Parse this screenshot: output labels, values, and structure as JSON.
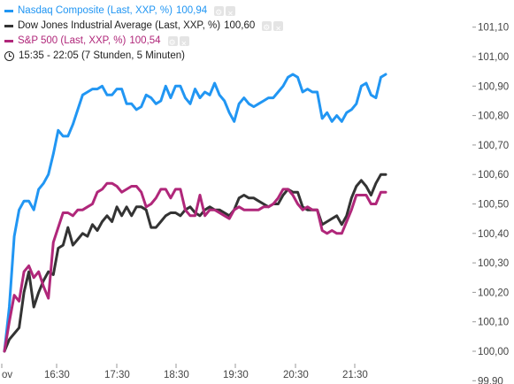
{
  "legend": {
    "items": [
      {
        "label": "Nasdaq Composite (Last, XXP, %)",
        "value": "100,94",
        "color": "#2196f3",
        "icons": [
          "gear-icon",
          "close-icon"
        ]
      },
      {
        "label": "Dow Jones Industrial Average (Last, XXP, %)",
        "value": "100,60",
        "color": "#333333",
        "icons": [
          "gear-icon",
          "close-icon"
        ]
      },
      {
        "label": "S&P 500 (Last, XXP, %)",
        "value": "100,54",
        "color": "#b0277a",
        "icons": [
          "gear-icon",
          "close-icon"
        ]
      }
    ],
    "time_range": "15:35 - 22:05 (7 Stunden, 5 Minuten)",
    "time_icon": "clock-icon"
  },
  "chart_data": {
    "type": "line",
    "ylim": [
      99.9,
      101.1
    ],
    "yticks": [
      "99,90",
      "100,00",
      "100,10",
      "100,20",
      "100,30",
      "100,40",
      "100,50",
      "100,60",
      "100,70",
      "100,80",
      "100,90",
      "101,00",
      "101,10"
    ],
    "xlim": [
      "15:35",
      "22:05"
    ],
    "xticks": [
      "ov",
      "16:30",
      "17:30",
      "18:30",
      "19:30",
      "20:30",
      "21:30"
    ],
    "grid": false,
    "series": [
      {
        "name": "Nasdaq Composite (Last, XXP, %)",
        "color": "#2196f3",
        "x": [
          "15:35",
          "15:40",
          "15:45",
          "15:50",
          "15:55",
          "16:00",
          "16:05",
          "16:10",
          "16:15",
          "16:20",
          "16:25",
          "16:30",
          "16:35",
          "16:40",
          "16:45",
          "16:50",
          "16:55",
          "17:00",
          "17:05",
          "17:10",
          "17:15",
          "17:20",
          "17:25",
          "17:30",
          "17:35",
          "17:40",
          "17:45",
          "17:50",
          "17:55",
          "18:00",
          "18:05",
          "18:10",
          "18:15",
          "18:20",
          "18:25",
          "18:30",
          "18:35",
          "18:40",
          "18:45",
          "18:50",
          "18:55",
          "19:00",
          "19:05",
          "19:10",
          "19:15",
          "19:20",
          "19:25",
          "19:30",
          "19:35",
          "19:40",
          "19:45",
          "19:50",
          "19:55",
          "20:00",
          "20:05",
          "20:10",
          "20:15",
          "20:20",
          "20:25",
          "20:30",
          "20:35",
          "20:40",
          "20:45",
          "20:50",
          "20:55",
          "21:00",
          "21:05",
          "21:10",
          "21:15",
          "21:20",
          "21:25",
          "21:30",
          "21:35",
          "21:40",
          "21:45",
          "21:50",
          "21:55",
          "22:00",
          "22:05"
        ],
        "values": [
          100.0,
          100.15,
          100.39,
          100.48,
          100.51,
          100.51,
          100.48,
          100.55,
          100.57,
          100.6,
          100.67,
          100.75,
          100.73,
          100.73,
          100.77,
          100.82,
          100.87,
          100.88,
          100.89,
          100.89,
          100.9,
          100.87,
          100.87,
          100.89,
          100.89,
          100.84,
          100.84,
          100.82,
          100.83,
          100.87,
          100.86,
          100.84,
          100.85,
          100.9,
          100.86,
          100.9,
          100.9,
          100.86,
          100.84,
          100.89,
          100.86,
          100.88,
          100.87,
          100.91,
          100.87,
          100.85,
          100.81,
          100.78,
          100.84,
          100.86,
          100.84,
          100.83,
          100.84,
          100.85,
          100.86,
          100.86,
          100.88,
          100.9,
          100.93,
          100.94,
          100.93,
          100.88,
          100.89,
          100.88,
          100.88,
          100.79,
          100.81,
          100.78,
          100.8,
          100.78,
          100.81,
          100.82,
          100.84,
          100.9,
          100.91,
          100.87,
          100.86,
          100.93,
          100.94
        ]
      },
      {
        "name": "Dow Jones Industrial Average (Last, XXP, %)",
        "color": "#333333",
        "x": [
          "15:35",
          "15:40",
          "15:45",
          "15:50",
          "15:55",
          "16:00",
          "16:05",
          "16:10",
          "16:15",
          "16:20",
          "16:25",
          "16:30",
          "16:35",
          "16:40",
          "16:45",
          "16:50",
          "16:55",
          "17:00",
          "17:05",
          "17:10",
          "17:15",
          "17:20",
          "17:25",
          "17:30",
          "17:35",
          "17:40",
          "17:45",
          "17:50",
          "17:55",
          "18:00",
          "18:05",
          "18:10",
          "18:15",
          "18:20",
          "18:25",
          "18:30",
          "18:35",
          "18:40",
          "18:45",
          "18:50",
          "18:55",
          "19:00",
          "19:05",
          "19:10",
          "19:15",
          "19:20",
          "19:25",
          "19:30",
          "19:35",
          "19:40",
          "19:45",
          "19:50",
          "19:55",
          "20:00",
          "20:05",
          "20:10",
          "20:15",
          "20:20",
          "20:25",
          "20:30",
          "20:35",
          "20:40",
          "20:45",
          "20:50",
          "20:55",
          "21:00",
          "21:05",
          "21:10",
          "21:15",
          "21:20",
          "21:25",
          "21:30",
          "21:35",
          "21:40",
          "21:45",
          "21:50",
          "21:55",
          "22:00",
          "22:05"
        ],
        "values": [
          100.0,
          100.04,
          100.06,
          100.08,
          100.2,
          100.27,
          100.15,
          100.2,
          100.24,
          100.27,
          100.26,
          100.35,
          100.36,
          100.42,
          100.36,
          100.38,
          100.4,
          100.39,
          100.43,
          100.41,
          100.44,
          100.46,
          100.44,
          100.49,
          100.46,
          100.49,
          100.46,
          100.49,
          100.49,
          100.48,
          100.42,
          100.42,
          100.44,
          100.46,
          100.47,
          100.47,
          100.46,
          100.48,
          100.49,
          100.47,
          100.46,
          100.48,
          100.49,
          100.48,
          100.48,
          100.47,
          100.46,
          100.48,
          100.52,
          100.53,
          100.52,
          100.52,
          100.51,
          100.5,
          100.49,
          100.5,
          100.5,
          100.53,
          100.55,
          100.54,
          100.54,
          100.49,
          100.48,
          100.48,
          100.48,
          100.43,
          100.44,
          100.45,
          100.46,
          100.43,
          100.46,
          100.52,
          100.56,
          100.58,
          100.56,
          100.53,
          100.57,
          100.6,
          100.6
        ]
      },
      {
        "name": "S&P 500 (Last, XXP, %)",
        "color": "#b0277a",
        "x": [
          "15:35",
          "15:40",
          "15:45",
          "15:50",
          "15:55",
          "16:00",
          "16:05",
          "16:10",
          "16:15",
          "16:20",
          "16:25",
          "16:30",
          "16:35",
          "16:40",
          "16:45",
          "16:50",
          "16:55",
          "17:00",
          "17:05",
          "17:10",
          "17:15",
          "17:20",
          "17:25",
          "17:30",
          "17:35",
          "17:40",
          "17:45",
          "17:50",
          "17:55",
          "18:00",
          "18:05",
          "18:10",
          "18:15",
          "18:20",
          "18:25",
          "18:30",
          "18:35",
          "18:40",
          "18:45",
          "18:50",
          "18:55",
          "19:00",
          "19:05",
          "19:10",
          "19:15",
          "19:20",
          "19:25",
          "19:30",
          "19:35",
          "19:40",
          "19:45",
          "19:50",
          "19:55",
          "20:00",
          "20:05",
          "20:10",
          "20:15",
          "20:20",
          "20:25",
          "20:30",
          "20:35",
          "20:40",
          "20:45",
          "20:50",
          "20:55",
          "21:00",
          "21:05",
          "21:10",
          "21:15",
          "21:20",
          "21:25",
          "21:30",
          "21:35",
          "21:40",
          "21:45",
          "21:50",
          "21:55",
          "22:00",
          "22:05"
        ],
        "values": [
          100.0,
          100.1,
          100.19,
          100.17,
          100.27,
          100.29,
          100.25,
          100.27,
          100.22,
          100.18,
          100.37,
          100.42,
          100.47,
          100.47,
          100.46,
          100.48,
          100.48,
          100.49,
          100.5,
          100.54,
          100.55,
          100.57,
          100.57,
          100.56,
          100.54,
          100.55,
          100.56,
          100.56,
          100.54,
          100.49,
          100.5,
          100.52,
          100.55,
          100.55,
          100.52,
          100.55,
          100.55,
          100.48,
          100.46,
          100.46,
          100.53,
          100.46,
          100.48,
          100.48,
          100.47,
          100.46,
          100.45,
          100.48,
          100.49,
          100.48,
          100.48,
          100.48,
          100.48,
          100.49,
          100.49,
          100.5,
          100.52,
          100.55,
          100.55,
          100.53,
          100.5,
          100.48,
          100.49,
          100.48,
          100.48,
          100.41,
          100.4,
          100.41,
          100.4,
          100.4,
          100.44,
          100.48,
          100.53,
          100.53,
          100.53,
          100.5,
          100.5,
          100.54,
          100.54
        ]
      }
    ]
  }
}
